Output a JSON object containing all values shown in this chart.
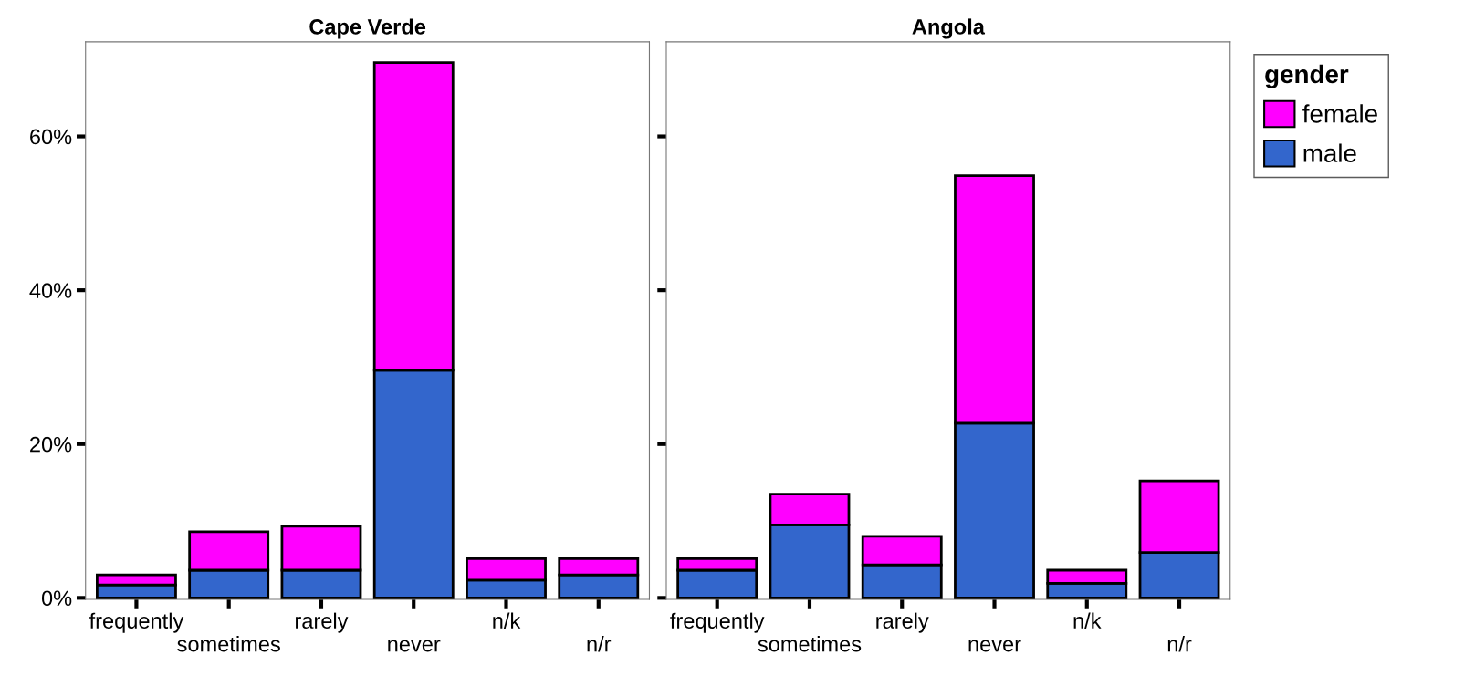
{
  "chart_data": [
    {
      "type": "bar",
      "title": "Cape Verde",
      "stacked": true,
      "categories": [
        "frequently",
        "sometimes",
        "rarely",
        "never",
        "n/k",
        "n/r"
      ],
      "series": [
        {
          "color": "#3366cc",
          "values": [
            1.7,
            3.6,
            3.6,
            29.6,
            2.3,
            3.0
          ]
        },
        {
          "color": "#ff00ff",
          "values": [
            1.3,
            5.0,
            5.7,
            40.0,
            2.8,
            2.1
          ]
        }
      ],
      "ylim": [
        -0.2,
        72.3
      ],
      "yticks": [
        {
          "value": 0,
          "label": "0%"
        },
        {
          "value": 20,
          "label": "20%"
        },
        {
          "value": 40,
          "label": "40%"
        },
        {
          "value": 60,
          "label": "60%"
        }
      ],
      "grid": false
    },
    {
      "type": "bar",
      "title": "Angola",
      "stacked": true,
      "categories": [
        "frequently",
        "sometimes",
        "rarely",
        "never",
        "n/k",
        "n/r"
      ],
      "series": [
        {
          "name": "male",
          "color": "#3366cc",
          "values": [
            3.6,
            9.5,
            4.3,
            22.7,
            1.9,
            5.9
          ]
        },
        {
          "name": "female",
          "color": "#ff00ff",
          "values": [
            1.5,
            4.0,
            3.7,
            32.2,
            1.7,
            9.3
          ]
        }
      ],
      "ylim": [
        -0.2,
        72.3
      ],
      "yticks": [
        0,
        20,
        40,
        60
      ],
      "tick_labels": "x",
      "grid": false,
      "legend": "right",
      "legend_title": "gender"
    }
  ]
}
